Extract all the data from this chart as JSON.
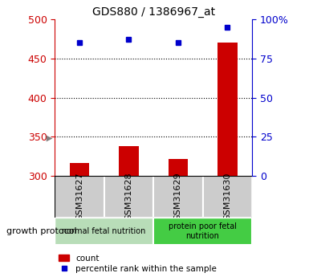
{
  "title": "GDS880 / 1386967_at",
  "samples": [
    "GSM31627",
    "GSM31628",
    "GSM31629",
    "GSM31630"
  ],
  "counts": [
    317,
    338,
    322,
    470
  ],
  "percentiles": [
    85,
    87,
    85,
    95
  ],
  "ylim_left": [
    300,
    500
  ],
  "ylim_right": [
    0,
    100
  ],
  "yticks_left": [
    300,
    350,
    400,
    450,
    500
  ],
  "yticks_right": [
    0,
    25,
    50,
    75,
    100
  ],
  "groups": [
    {
      "label": "normal fetal nutrition",
      "samples": [
        0,
        1
      ],
      "color": "#b8ddb8"
    },
    {
      "label": "protein poor fetal\nnutrition",
      "samples": [
        2,
        3
      ],
      "color": "#44cc44"
    }
  ],
  "bar_color": "#cc0000",
  "square_color": "#0000cc",
  "bar_width": 0.4,
  "legend_count_label": "count",
  "legend_pct_label": "percentile rank within the sample",
  "growth_protocol_label": "growth protocol",
  "left_axis_color": "#cc0000",
  "right_axis_color": "#0000cc",
  "sample_box_color": "#cccccc"
}
